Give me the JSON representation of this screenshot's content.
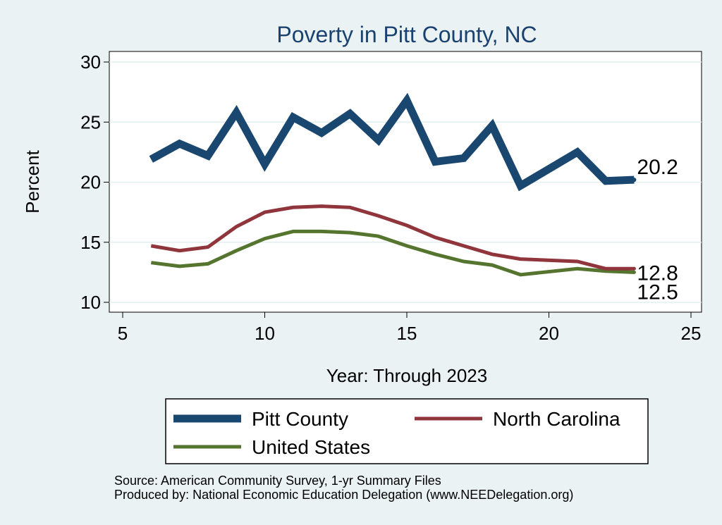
{
  "chart_data": {
    "type": "line",
    "title": "Poverty in Pitt County, NC",
    "xlabel": "Year: Through 2023",
    "ylabel": "Percent",
    "xlim": [
      5,
      25
    ],
    "ylim": [
      10,
      30
    ],
    "xticks": [
      5,
      10,
      15,
      20,
      25
    ],
    "yticks": [
      10,
      15,
      20,
      25,
      30
    ],
    "grid": true,
    "x": [
      6,
      7,
      8,
      9,
      10,
      11,
      12,
      13,
      14,
      15,
      16,
      17,
      18,
      19,
      21,
      22,
      23
    ],
    "series": [
      {
        "name": "Pitt County",
        "color": "#1a476f",
        "values": [
          21.9,
          23.2,
          22.2,
          25.8,
          21.5,
          25.4,
          24.1,
          25.7,
          23.5,
          26.8,
          21.7,
          22.0,
          24.7,
          19.7,
          22.5,
          20.1,
          20.2
        ],
        "end_label": "20.2"
      },
      {
        "name": "North Carolina",
        "color": "#90353b",
        "values": [
          14.7,
          14.3,
          14.6,
          16.3,
          17.5,
          17.9,
          18.0,
          17.9,
          17.2,
          16.4,
          15.4,
          14.7,
          14.0,
          13.6,
          13.4,
          12.8,
          12.8
        ],
        "end_label": "12.8"
      },
      {
        "name": "United States",
        "color": "#55752f",
        "values": [
          13.3,
          13.0,
          13.2,
          14.3,
          15.3,
          15.9,
          15.9,
          15.8,
          15.5,
          14.7,
          14.0,
          13.4,
          13.1,
          12.3,
          12.8,
          12.6,
          12.5
        ],
        "end_label": "12.5"
      }
    ],
    "legend": [
      "Pitt County",
      "North Carolina",
      "United States"
    ],
    "legend_position": "bottom"
  },
  "notes": {
    "source": "Source: American Community Survey, 1-yr Summary Files",
    "produced_by": "Produced by: National Economic Education Delegation (www.NEEDelegation.org)"
  }
}
